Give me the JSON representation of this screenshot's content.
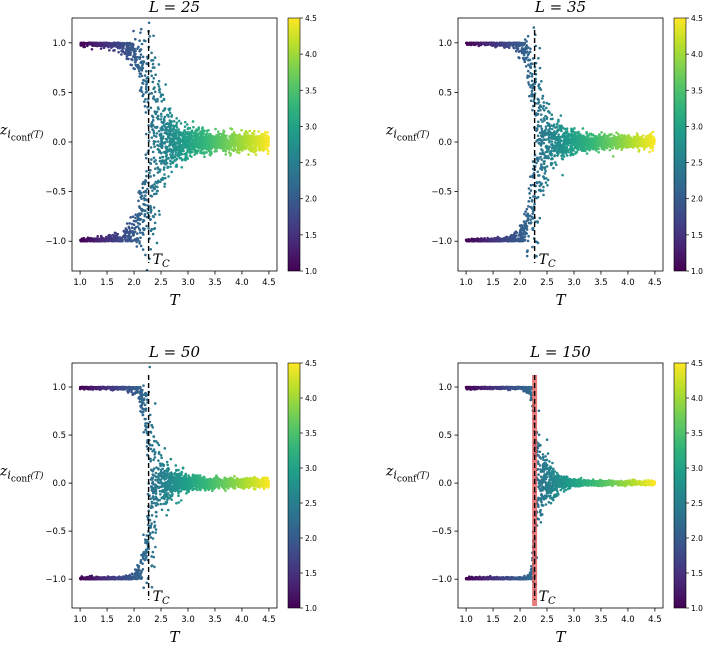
{
  "chart_data": [
    {
      "type": "scatter",
      "title": "L = 25",
      "xlabel": "T",
      "ylabel": "z_{i_conf}(T)",
      "xlim": [
        0.85,
        4.65
      ],
      "ylim": [
        -1.3,
        1.25
      ],
      "x_ticks": [
        "1.0",
        "1.5",
        "2.0",
        "2.5",
        "3.0",
        "3.5",
        "4.0",
        "4.5"
      ],
      "y_ticks": [
        "1.0",
        "0.5",
        "0.0",
        "-0.5",
        "-1.0"
      ],
      "tc_x": 2.27,
      "tc_label": "T_C",
      "critical_band": false,
      "transition_width": 0.13,
      "colorbar": {
        "min": 1.0,
        "max": 4.5,
        "ticks": [
          "4.5",
          "4.0",
          "3.5",
          "3.0",
          "2.5",
          "2.0",
          "1.5",
          "1.0"
        ]
      },
      "grid": false,
      "tail_spread_at_T_max": 0.06
    },
    {
      "type": "scatter",
      "title": "L = 35",
      "xlabel": "T",
      "ylabel": "z_{i_conf}(T)",
      "xlim": [
        0.85,
        4.65
      ],
      "ylim": [
        -1.3,
        1.25
      ],
      "x_ticks": [
        "1.0",
        "1.5",
        "2.0",
        "2.5",
        "3.0",
        "3.5",
        "4.0",
        "4.5"
      ],
      "y_ticks": [
        "1.0",
        "0.5",
        "0.0",
        "-0.5",
        "-1.0"
      ],
      "tc_x": 2.27,
      "tc_label": "T_C",
      "critical_band": false,
      "transition_width": 0.08,
      "colorbar": {
        "min": 1.0,
        "max": 4.5,
        "ticks": [
          "4.5",
          "4.0",
          "3.5",
          "3.0",
          "2.5",
          "2.0",
          "1.5",
          "1.0"
        ]
      },
      "grid": false,
      "tail_spread_at_T_max": 0.045
    },
    {
      "type": "scatter",
      "title": "L = 50",
      "xlabel": "T",
      "ylabel": "z_{i_conf}(T)",
      "xlim": [
        0.85,
        4.65
      ],
      "ylim": [
        -1.3,
        1.25
      ],
      "x_ticks": [
        "1.0",
        "1.5",
        "2.0",
        "2.5",
        "3.0",
        "3.5",
        "4.0",
        "4.5"
      ],
      "y_ticks": [
        "1.0",
        "0.5",
        "0.0",
        "-0.5",
        "-1.0"
      ],
      "tc_x": 2.27,
      "tc_label": "T_C",
      "critical_band": false,
      "transition_width": 0.06,
      "colorbar": {
        "min": 1.0,
        "max": 4.5,
        "ticks": [
          "4.5",
          "4.0",
          "3.5",
          "3.0",
          "2.5",
          "2.0",
          "1.5",
          "1.0"
        ]
      },
      "grid": false,
      "tail_spread_at_T_max": 0.035
    },
    {
      "type": "scatter",
      "title": "L = 150",
      "xlabel": "T",
      "ylabel": "z_{i_conf}(T)",
      "xlim": [
        0.85,
        4.65
      ],
      "ylim": [
        -1.3,
        1.25
      ],
      "x_ticks": [
        "1.0",
        "1.5",
        "2.0",
        "2.5",
        "3.0",
        "3.5",
        "4.0",
        "4.5"
      ],
      "y_ticks": [
        "1.0",
        "0.5",
        "0.0",
        "-0.5",
        "-1.0"
      ],
      "tc_x": 2.27,
      "tc_label": "T_C",
      "critical_band": true,
      "transition_width": 0.02,
      "colorbar": {
        "min": 1.0,
        "max": 4.5,
        "ticks": [
          "4.5",
          "4.0",
          "3.5",
          "3.0",
          "2.5",
          "2.0",
          "1.5",
          "1.0"
        ]
      },
      "grid": false,
      "tail_spread_at_T_max": 0.015
    }
  ],
  "colors": {
    "colormap": "viridis",
    "tc_line": "#000000",
    "critical_band": "#e05050"
  }
}
